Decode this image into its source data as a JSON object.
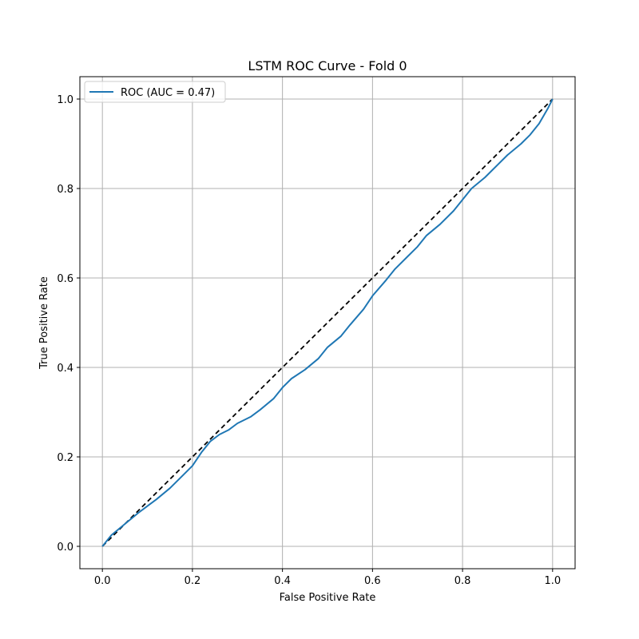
{
  "chart_data": {
    "type": "line",
    "title": "LSTM ROC Curve - Fold 0",
    "xlabel": "False Positive Rate",
    "ylabel": "True Positive Rate",
    "xlim": [
      -0.05,
      1.05
    ],
    "ylim": [
      -0.05,
      1.05
    ],
    "xticks": [
      0.0,
      0.2,
      0.4,
      0.6,
      0.8,
      1.0
    ],
    "yticks": [
      0.0,
      0.2,
      0.4,
      0.6,
      0.8,
      1.0
    ],
    "xtick_labels": [
      "0.0",
      "0.2",
      "0.4",
      "0.6",
      "0.8",
      "1.0"
    ],
    "ytick_labels": [
      "0.0",
      "0.2",
      "0.4",
      "0.6",
      "0.8",
      "1.0"
    ],
    "grid": true,
    "legend_position": "top-left",
    "series": [
      {
        "name": "ROC (AUC = 0.47)",
        "color": "#1f77b4",
        "style": "solid",
        "x": [
          0.0,
          0.02,
          0.05,
          0.08,
          0.1,
          0.12,
          0.15,
          0.18,
          0.2,
          0.22,
          0.24,
          0.26,
          0.28,
          0.3,
          0.33,
          0.35,
          0.38,
          0.4,
          0.42,
          0.45,
          0.48,
          0.5,
          0.53,
          0.55,
          0.58,
          0.6,
          0.63,
          0.65,
          0.68,
          0.7,
          0.72,
          0.75,
          0.78,
          0.8,
          0.82,
          0.85,
          0.88,
          0.9,
          0.93,
          0.95,
          0.97,
          0.99,
          1.0
        ],
        "y": [
          0.0,
          0.025,
          0.05,
          0.075,
          0.09,
          0.105,
          0.13,
          0.16,
          0.18,
          0.21,
          0.235,
          0.25,
          0.26,
          0.275,
          0.29,
          0.305,
          0.33,
          0.355,
          0.375,
          0.395,
          0.42,
          0.445,
          0.47,
          0.495,
          0.53,
          0.56,
          0.595,
          0.62,
          0.65,
          0.67,
          0.695,
          0.72,
          0.75,
          0.775,
          0.8,
          0.825,
          0.855,
          0.875,
          0.9,
          0.92,
          0.945,
          0.98,
          1.0
        ]
      },
      {
        "name": "",
        "color": "#000000",
        "style": "dashed",
        "x": [
          0.0,
          1.0
        ],
        "y": [
          0.0,
          1.0
        ]
      }
    ]
  }
}
